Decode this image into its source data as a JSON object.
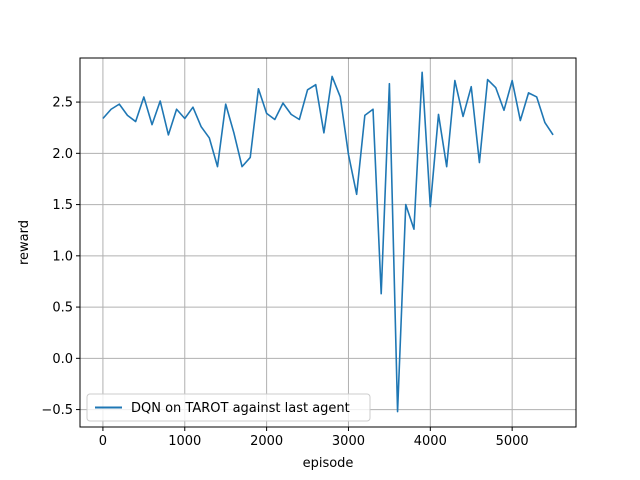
{
  "chart_data": {
    "type": "line",
    "xlabel": "episode",
    "ylabel": "reward",
    "xlim": [
      -280,
      5780
    ],
    "ylim": [
      -0.67,
      2.93
    ],
    "xticks": [
      0,
      1000,
      2000,
      3000,
      4000,
      5000
    ],
    "yticks": [
      -0.5,
      0.0,
      0.5,
      1.0,
      1.5,
      2.0,
      2.5
    ],
    "xtick_labels": [
      "0",
      "1000",
      "2000",
      "3000",
      "4000",
      "5000"
    ],
    "ytick_labels": [
      "−0.5",
      "0.0",
      "0.5",
      "1.0",
      "1.5",
      "2.0",
      "2.5"
    ],
    "grid": true,
    "legend_position": "lower-left",
    "series": [
      {
        "name": "DQN on TAROT against last agent",
        "color": "#1f77b4",
        "x": [
          0,
          100,
          200,
          300,
          400,
          500,
          600,
          700,
          800,
          900,
          1000,
          1100,
          1200,
          1300,
          1400,
          1500,
          1600,
          1700,
          1800,
          1900,
          2000,
          2100,
          2200,
          2300,
          2400,
          2500,
          2600,
          2700,
          2800,
          2900,
          3000,
          3100,
          3200,
          3300,
          3400,
          3500,
          3600,
          3700,
          3800,
          3900,
          4000,
          4100,
          4200,
          4300,
          4400,
          4500,
          4600,
          4700,
          4800,
          4900,
          5000,
          5100,
          5200,
          5300,
          5400,
          5500
        ],
        "y": [
          2.34,
          2.43,
          2.48,
          2.37,
          2.31,
          2.55,
          2.28,
          2.51,
          2.18,
          2.43,
          2.34,
          2.45,
          2.26,
          2.15,
          1.87,
          2.48,
          2.2,
          1.87,
          1.96,
          2.63,
          2.39,
          2.33,
          2.49,
          2.38,
          2.33,
          2.62,
          2.67,
          2.2,
          2.75,
          2.55,
          1.99,
          1.6,
          2.37,
          2.43,
          0.63,
          2.68,
          -0.52,
          1.5,
          1.26,
          2.79,
          1.48,
          2.38,
          1.87,
          2.71,
          2.36,
          2.65,
          1.91,
          2.72,
          2.64,
          2.42,
          2.71,
          2.32,
          2.59,
          2.55,
          2.3,
          2.18
        ]
      }
    ]
  }
}
